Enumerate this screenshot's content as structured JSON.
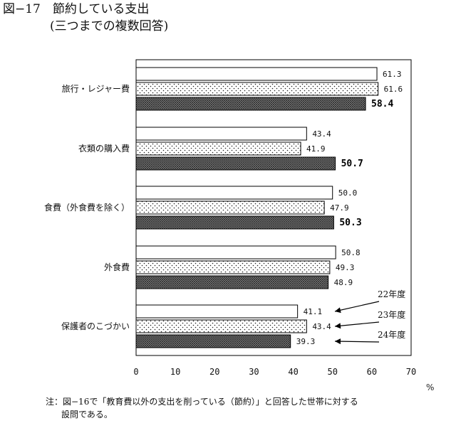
{
  "title": "図−17　節約している支出",
  "subtitle": "(三つまでの複数回答)",
  "unit": "%",
  "note_line1": "注：図−16で「教育費以外の支出を削っている（節約）」と回答した世帯に対する",
  "note_line2": "設問である。",
  "chart_data": {
    "type": "bar",
    "orientation": "horizontal",
    "categories": [
      "旅行・レジャー費",
      "衣類の購入費",
      "食費（外食費を除く）",
      "外食費",
      "保護者のこづかい"
    ],
    "series": [
      {
        "name": "22年度",
        "values": [
          61.3,
          43.4,
          50.0,
          50.8,
          41.1
        ],
        "pattern": "white"
      },
      {
        "name": "23年度",
        "values": [
          61.6,
          41.9,
          47.9,
          49.3,
          43.4
        ],
        "pattern": "dots"
      },
      {
        "name": "24年度",
        "values": [
          58.4,
          50.7,
          50.3,
          48.9,
          39.3
        ],
        "pattern": "crosshatch"
      }
    ],
    "value_labels": [
      [
        "61.3",
        "43.4",
        "50.0",
        "50.8",
        "41.1"
      ],
      [
        "61.6",
        "41.9",
        "47.9",
        "49.3",
        "43.4"
      ],
      [
        "58.4",
        "50.7",
        "50.3",
        "48.9",
        "39.3"
      ]
    ],
    "bold_labels": [
      [
        false,
        false,
        false,
        false,
        false
      ],
      [
        false,
        false,
        false,
        false,
        false
      ],
      [
        true,
        true,
        true,
        false,
        false
      ]
    ],
    "xlim": [
      0,
      70
    ],
    "xticks": [
      "0",
      "10",
      "20",
      "30",
      "40",
      "50",
      "60",
      "70"
    ],
    "legend_position": "right-of-last-category"
  }
}
